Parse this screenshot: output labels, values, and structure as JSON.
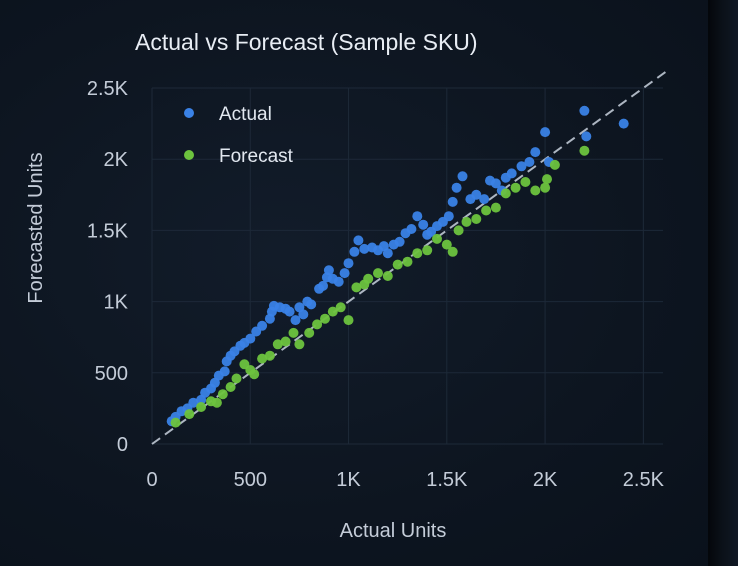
{
  "chart_data": {
    "type": "scatter",
    "title": "Actual vs Forecast (Sample SKU)",
    "xlabel": "Actual Units",
    "ylabel": "Forecasted Units",
    "xlim": [
      0,
      2600
    ],
    "ylim": [
      0,
      2500
    ],
    "x_ticks": [
      {
        "value": 0,
        "label": "0"
      },
      {
        "value": 500,
        "label": "500"
      },
      {
        "value": 1000,
        "label": "1K"
      },
      {
        "value": 1500,
        "label": "1.5K"
      },
      {
        "value": 2000,
        "label": "2K"
      },
      {
        "value": 2500,
        "label": "2.5K"
      }
    ],
    "y_ticks": [
      {
        "value": 0,
        "label": "0"
      },
      {
        "value": 500,
        "label": "500"
      },
      {
        "value": 1000,
        "label": "1K"
      },
      {
        "value": 1500,
        "label": "1.5K"
      },
      {
        "value": 2000,
        "label": "2K"
      },
      {
        "value": 2500,
        "label": "2.5K"
      }
    ],
    "grid": true,
    "legend": "top-left",
    "reference_line": "y = x (dashed)",
    "series": [
      {
        "name": "Actual",
        "color": "#3a82e6",
        "points": [
          [
            100,
            160
          ],
          [
            120,
            190
          ],
          [
            150,
            230
          ],
          [
            180,
            250
          ],
          [
            210,
            290
          ],
          [
            250,
            310
          ],
          [
            270,
            360
          ],
          [
            300,
            390
          ],
          [
            320,
            430
          ],
          [
            340,
            480
          ],
          [
            370,
            510
          ],
          [
            380,
            580
          ],
          [
            400,
            620
          ],
          [
            420,
            650
          ],
          [
            450,
            690
          ],
          [
            470,
            710
          ],
          [
            500,
            740
          ],
          [
            530,
            790
          ],
          [
            560,
            830
          ],
          [
            600,
            880
          ],
          [
            610,
            930
          ],
          [
            620,
            970
          ],
          [
            650,
            960
          ],
          [
            680,
            950
          ],
          [
            700,
            930
          ],
          [
            730,
            870
          ],
          [
            750,
            960
          ],
          [
            770,
            910
          ],
          [
            790,
            1000
          ],
          [
            810,
            980
          ],
          [
            850,
            1090
          ],
          [
            870,
            1110
          ],
          [
            890,
            1170
          ],
          [
            900,
            1220
          ],
          [
            920,
            1160
          ],
          [
            950,
            1140
          ],
          [
            980,
            1200
          ],
          [
            1000,
            1270
          ],
          [
            1030,
            1350
          ],
          [
            1050,
            1430
          ],
          [
            1080,
            1370
          ],
          [
            1120,
            1380
          ],
          [
            1150,
            1360
          ],
          [
            1180,
            1390
          ],
          [
            1200,
            1340
          ],
          [
            1230,
            1400
          ],
          [
            1260,
            1420
          ],
          [
            1290,
            1480
          ],
          [
            1320,
            1510
          ],
          [
            1350,
            1600
          ],
          [
            1380,
            1540
          ],
          [
            1400,
            1470
          ],
          [
            1420,
            1490
          ],
          [
            1450,
            1530
          ],
          [
            1480,
            1560
          ],
          [
            1510,
            1600
          ],
          [
            1530,
            1700
          ],
          [
            1550,
            1800
          ],
          [
            1580,
            1880
          ],
          [
            1620,
            1720
          ],
          [
            1650,
            1750
          ],
          [
            1690,
            1720
          ],
          [
            1720,
            1850
          ],
          [
            1750,
            1830
          ],
          [
            1780,
            1780
          ],
          [
            1800,
            1870
          ],
          [
            1830,
            1900
          ],
          [
            1880,
            1950
          ],
          [
            1920,
            1980
          ],
          [
            1950,
            2050
          ],
          [
            2000,
            2190
          ],
          [
            2020,
            1980
          ],
          [
            2200,
            2340
          ],
          [
            2210,
            2160
          ],
          [
            2400,
            2250
          ]
        ]
      },
      {
        "name": "Forecast",
        "color": "#6dc33e",
        "points": [
          [
            120,
            150
          ],
          [
            190,
            210
          ],
          [
            250,
            260
          ],
          [
            300,
            300
          ],
          [
            330,
            290
          ],
          [
            360,
            350
          ],
          [
            400,
            400
          ],
          [
            430,
            460
          ],
          [
            470,
            560
          ],
          [
            500,
            520
          ],
          [
            520,
            490
          ],
          [
            560,
            600
          ],
          [
            600,
            620
          ],
          [
            640,
            700
          ],
          [
            680,
            720
          ],
          [
            720,
            780
          ],
          [
            750,
            700
          ],
          [
            800,
            780
          ],
          [
            840,
            840
          ],
          [
            880,
            880
          ],
          [
            920,
            930
          ],
          [
            960,
            960
          ],
          [
            1000,
            870
          ],
          [
            1040,
            1100
          ],
          [
            1080,
            1120
          ],
          [
            1100,
            1160
          ],
          [
            1150,
            1200
          ],
          [
            1200,
            1180
          ],
          [
            1250,
            1260
          ],
          [
            1300,
            1280
          ],
          [
            1350,
            1340
          ],
          [
            1400,
            1360
          ],
          [
            1450,
            1440
          ],
          [
            1500,
            1400
          ],
          [
            1530,
            1350
          ],
          [
            1560,
            1500
          ],
          [
            1600,
            1560
          ],
          [
            1650,
            1580
          ],
          [
            1700,
            1640
          ],
          [
            1750,
            1660
          ],
          [
            1800,
            1760
          ],
          [
            1850,
            1800
          ],
          [
            1900,
            1840
          ],
          [
            1950,
            1780
          ],
          [
            2000,
            1800
          ],
          [
            2010,
            1860
          ],
          [
            2050,
            1960
          ],
          [
            2200,
            2060
          ]
        ]
      }
    ]
  }
}
